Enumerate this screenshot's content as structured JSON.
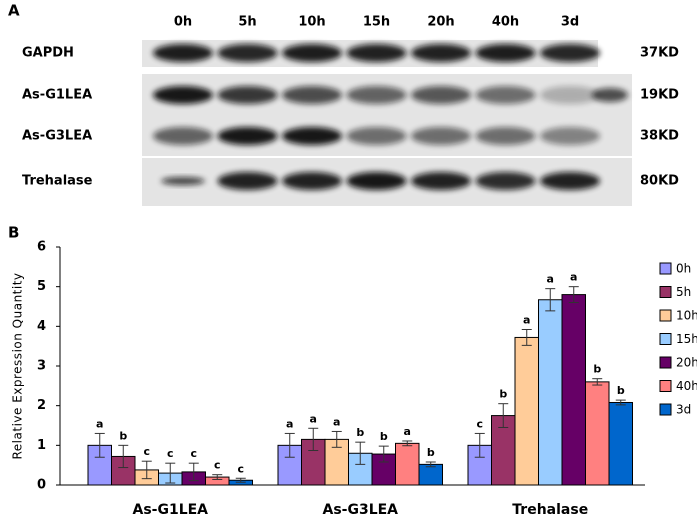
{
  "panel_a": {
    "label": "A",
    "lanes": [
      "0h",
      "5h",
      "10h",
      "15h",
      "20h",
      "40h",
      "3d"
    ],
    "rows": [
      {
        "name": "GAPDH",
        "size": "37KD"
      },
      {
        "name": "As-G1LEA",
        "size": "19KD"
      },
      {
        "name": "As-G3LEA",
        "size": "38KD"
      },
      {
        "name": "Trehalase",
        "size": "80KD"
      }
    ]
  },
  "chart_data": {
    "type": "bar",
    "panel_label": "B",
    "ylabel": "Relative Expression Quantity",
    "categories": [
      "As-G1LEA",
      "As-G3LEA",
      "Trehalase"
    ],
    "ylim": [
      0,
      6
    ],
    "yticks": [
      0,
      1,
      2,
      3,
      4,
      5,
      6
    ],
    "legend": "right",
    "series": [
      {
        "name": "0h",
        "color": "#9999ff",
        "values": [
          1.0,
          1.0,
          1.0
        ],
        "errors": [
          0.3,
          0.3,
          0.3
        ],
        "labels": [
          "a",
          "a",
          "c"
        ]
      },
      {
        "name": "5h",
        "color": "#993366",
        "values": [
          0.72,
          1.15,
          1.75
        ],
        "errors": [
          0.28,
          0.28,
          0.3
        ],
        "labels": [
          "b",
          "a",
          "b"
        ]
      },
      {
        "name": "10h",
        "color": "#ffcc99",
        "values": [
          0.38,
          1.15,
          3.72
        ],
        "errors": [
          0.22,
          0.2,
          0.2
        ],
        "labels": [
          "c",
          "a",
          "a"
        ]
      },
      {
        "name": "15h",
        "color": "#99ccff",
        "values": [
          0.3,
          0.8,
          4.67
        ],
        "errors": [
          0.25,
          0.28,
          0.28
        ],
        "labels": [
          "c",
          "b",
          "a"
        ]
      },
      {
        "name": "20h",
        "color": "#660066",
        "values": [
          0.33,
          0.78,
          4.8
        ],
        "errors": [
          0.22,
          0.2,
          0.2
        ],
        "labels": [
          "c",
          "b",
          "a"
        ]
      },
      {
        "name": "40h",
        "color": "#ff8080",
        "values": [
          0.2,
          1.05,
          2.6
        ],
        "errors": [
          0.06,
          0.06,
          0.08
        ],
        "labels": [
          "c",
          "a",
          "b"
        ]
      },
      {
        "name": "3d",
        "color": "#0066cc",
        "values": [
          0.12,
          0.52,
          2.08
        ],
        "errors": [
          0.05,
          0.06,
          0.06
        ],
        "labels": [
          "c",
          "b",
          "b"
        ]
      }
    ]
  }
}
